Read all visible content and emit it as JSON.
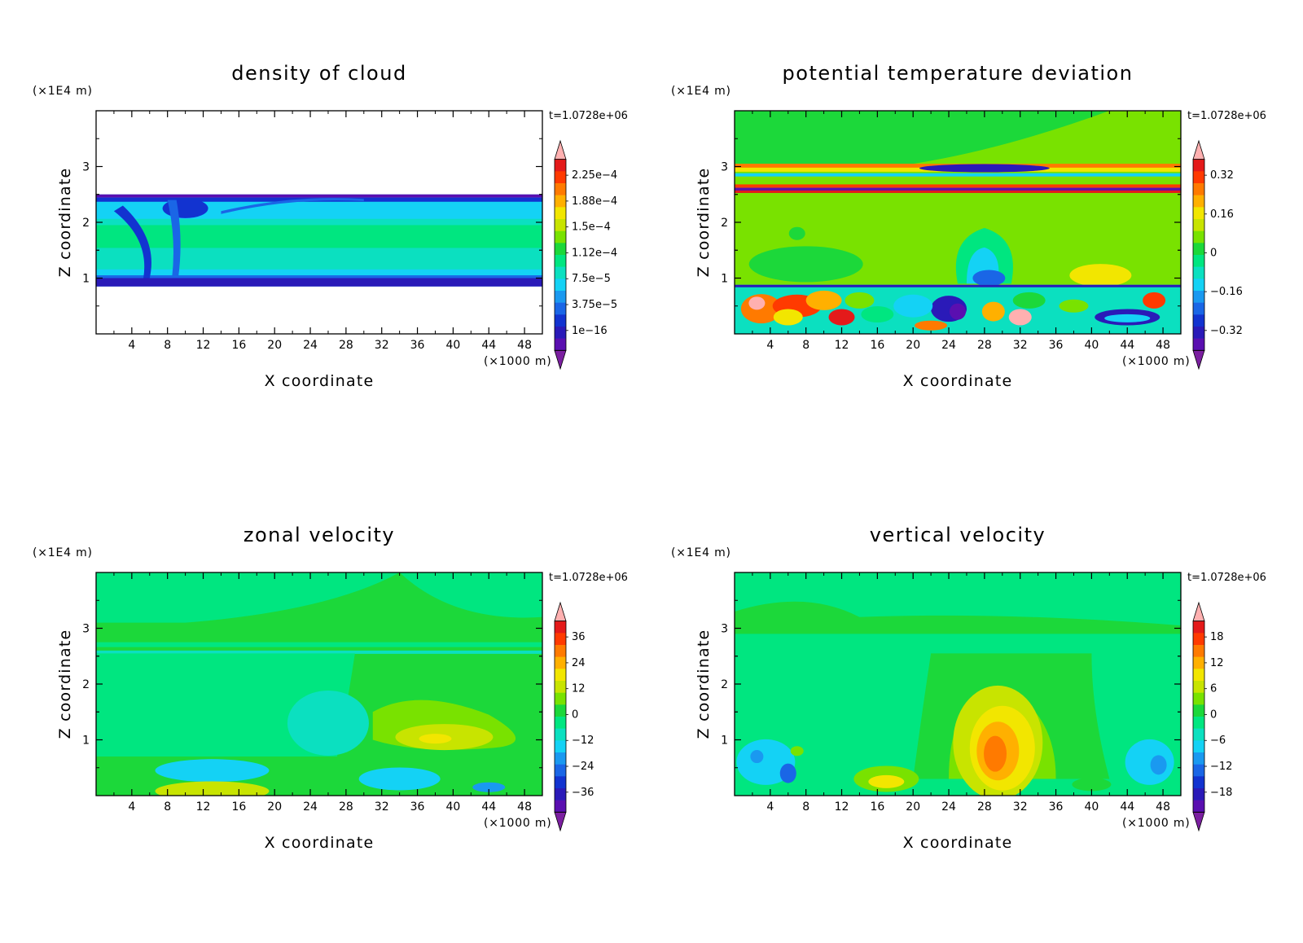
{
  "chart_data": [
    {
      "type": "heatmap",
      "title": "density of cloud",
      "xlabel": "X coordinate",
      "ylabel": "Z coordinate",
      "x_unit": "(×1000 m)",
      "y_unit": "(×1E4 m)",
      "timestamp": "t=1.0728e+06",
      "xlim": [
        0,
        50
      ],
      "ylim": [
        0,
        4
      ],
      "x_ticks": [
        "4",
        "8",
        "12",
        "16",
        "20",
        "24",
        "28",
        "32",
        "36",
        "40",
        "44",
        "48"
      ],
      "y_ticks": [
        "1",
        "2",
        "3"
      ],
      "colorbar_labels": [
        "2.25e-4",
        "1.88e-4",
        "1.5e-4",
        "1.12e-4",
        "7.5e-5",
        "3.75e-5",
        "1e-16"
      ],
      "field": "cloud"
    },
    {
      "type": "heatmap",
      "title": "potential temperature deviation",
      "xlabel": "X coordinate",
      "ylabel": "Z coordinate",
      "x_unit": "(×1000 m)",
      "y_unit": "(×1E4 m)",
      "timestamp": "t=1.0728e+06",
      "xlim": [
        0,
        50
      ],
      "ylim": [
        0,
        4
      ],
      "x_ticks": [
        "4",
        "8",
        "12",
        "16",
        "20",
        "24",
        "28",
        "32",
        "36",
        "40",
        "44",
        "48"
      ],
      "y_ticks": [
        "1",
        "2",
        "3"
      ],
      "colorbar_labels": [
        "0.32",
        "0.16",
        "0",
        "-0.16",
        "-0.32"
      ],
      "field": "theta"
    },
    {
      "type": "heatmap",
      "title": "zonal velocity",
      "xlabel": "X coordinate",
      "ylabel": "Z coordinate",
      "x_unit": "(×1000 m)",
      "y_unit": "(×1E4 m)",
      "timestamp": "t=1.0728e+06",
      "xlim": [
        0,
        50
      ],
      "ylim": [
        0,
        4
      ],
      "x_ticks": [
        "4",
        "8",
        "12",
        "16",
        "20",
        "24",
        "28",
        "32",
        "36",
        "40",
        "44",
        "48"
      ],
      "y_ticks": [
        "1",
        "2",
        "3"
      ],
      "colorbar_labels": [
        "36",
        "24",
        "12",
        "0",
        "-12",
        "-24",
        "-36"
      ],
      "field": "zonal"
    },
    {
      "type": "heatmap",
      "title": "vertical velocity",
      "xlabel": "X coordinate",
      "ylabel": "Z coordinate",
      "x_unit": "(×1000 m)",
      "y_unit": "(×1E4 m)",
      "timestamp": "t=1.0728e+06",
      "xlim": [
        0,
        50
      ],
      "ylim": [
        0,
        4
      ],
      "x_ticks": [
        "4",
        "8",
        "12",
        "16",
        "20",
        "24",
        "28",
        "32",
        "36",
        "40",
        "44",
        "48"
      ],
      "y_ticks": [
        "1",
        "2",
        "3"
      ],
      "colorbar_labels": [
        "18",
        "12",
        "6",
        "0",
        "-6",
        "-12",
        "-18"
      ],
      "field": "vertical"
    }
  ],
  "palette": {
    "cb_colors": [
      "#7b1fa0",
      "#5a0fb0",
      "#2a1ab8",
      "#1233d0",
      "#1a66e6",
      "#1a99f0",
      "#14d2f5",
      "#0be0c0",
      "#00e680",
      "#1cd83a",
      "#79e200",
      "#c8e400",
      "#f2e600",
      "#ffb000",
      "#ff7a00",
      "#ff3a00",
      "#e41a1a",
      "#ffb0b0"
    ],
    "background": "#ffffff"
  }
}
